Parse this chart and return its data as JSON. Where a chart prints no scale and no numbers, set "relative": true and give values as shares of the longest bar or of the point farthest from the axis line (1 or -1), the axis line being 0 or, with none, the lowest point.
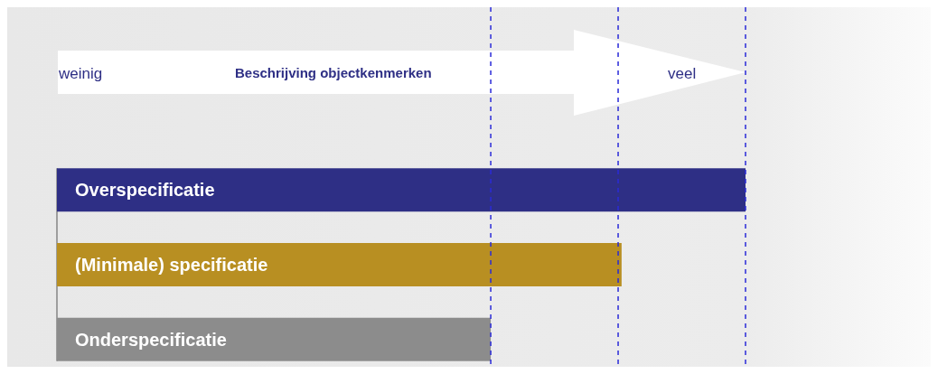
{
  "chart_data": {
    "type": "bar",
    "orientation": "horizontal",
    "relative": true,
    "categories": [
      "Overspecificatie",
      "(Minimale) specificatie",
      "Onderspecificatie"
    ],
    "values": [
      1,
      0.82,
      0.63
    ],
    "colors": [
      "#2e2f85",
      "#b88f22",
      "#8c8c8c"
    ],
    "annotations": [
      "weinig",
      "Beschrijving objectkenmerken",
      "veel"
    ],
    "ref_lines": [
      {
        "axis": "x",
        "value": 0.63,
        "color": "#2a2ad8",
        "line_style": "dashed"
      },
      {
        "axis": "x",
        "value": 0.815,
        "color": "#2a2ad8",
        "line_style": "dashed"
      },
      {
        "axis": "x",
        "value": 1,
        "color": "#2a2ad8",
        "line_style": "dashed"
      }
    ]
  }
}
